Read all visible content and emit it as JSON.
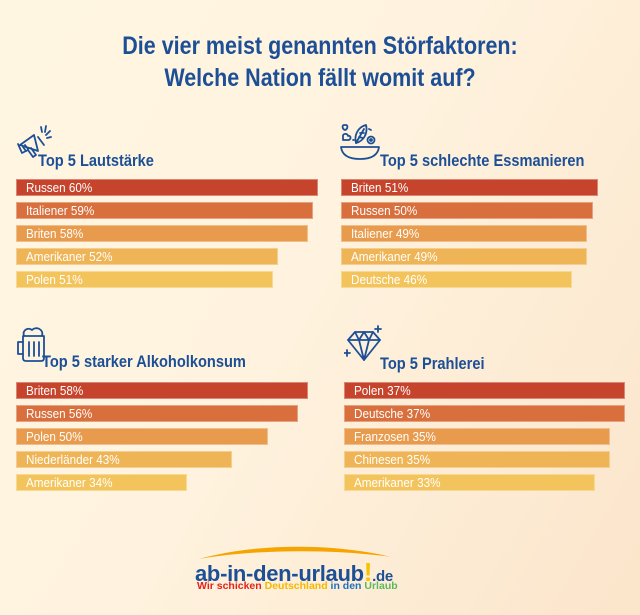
{
  "title": {
    "line1": "Die vier meist genannten Störfaktoren:",
    "line2": "Welche Nation fällt womit auf?"
  },
  "colors": {
    "title": "#1d4f96",
    "bars": [
      "#c7442c",
      "#d86f3d",
      "#e89b4d",
      "#efb455",
      "#f4c45c"
    ]
  },
  "chart_data": [
    {
      "type": "bar",
      "orientation": "horizontal",
      "title": "Top 5 Lautstärke",
      "icon": "megaphone-icon",
      "categories": [
        "Russen",
        "Italiener",
        "Briten",
        "Amerikaner",
        "Polen"
      ],
      "values": [
        60,
        59,
        58,
        52,
        51
      ],
      "labels": [
        "Russen 60%",
        "Italiener 59%",
        "Briten 58%",
        "Amerikaner 52%",
        "Polen 51%"
      ],
      "unit": "%"
    },
    {
      "type": "bar",
      "orientation": "horizontal",
      "title": "Top 5 schlechte Essmanieren",
      "icon": "salad-bowl-icon",
      "categories": [
        "Briten",
        "Russen",
        "Italiener",
        "Amerikaner",
        "Deutsche"
      ],
      "values": [
        51,
        50,
        49,
        49,
        46
      ],
      "labels": [
        "Briten 51%",
        "Russen 50%",
        "Italiener 49%",
        "Amerikaner 49%",
        "Deutsche 46%"
      ],
      "unit": "%"
    },
    {
      "type": "bar",
      "orientation": "horizontal",
      "title": "Top 5 starker Alkoholkonsum",
      "icon": "beer-mug-icon",
      "categories": [
        "Briten",
        "Russen",
        "Polen",
        "Niederländer",
        "Amerikaner"
      ],
      "values": [
        58,
        56,
        50,
        43,
        34
      ],
      "labels": [
        "Briten 58%",
        "Russen 56%",
        "Polen 50%",
        "Niederländer 43%",
        "Amerikaner 34%"
      ],
      "unit": "%"
    },
    {
      "type": "bar",
      "orientation": "horizontal",
      "title": "Top 5 Prahlerei",
      "icon": "diamond-icon",
      "categories": [
        "Polen",
        "Deutsche",
        "Franzosen",
        "Chinesen",
        "Amerikaner"
      ],
      "values": [
        37,
        37,
        35,
        35,
        33
      ],
      "labels": [
        "Polen 37%",
        "Deutsche 37%",
        "Franzosen 35%",
        "Chinesen 35%",
        "Amerikaner 33%"
      ],
      "unit": "%"
    }
  ],
  "logo": {
    "main": "ab-in-den-urlaub",
    "exclamation": "!",
    "tld": ".de",
    "tagline": [
      {
        "text": "Wir schicken ",
        "color": "#e2231a"
      },
      {
        "text": "Deutschland ",
        "color": "#f5b800"
      },
      {
        "text": "in den ",
        "color": "#1d6fc4"
      },
      {
        "text": "Urlaub",
        "color": "#5cb85c"
      }
    ]
  }
}
